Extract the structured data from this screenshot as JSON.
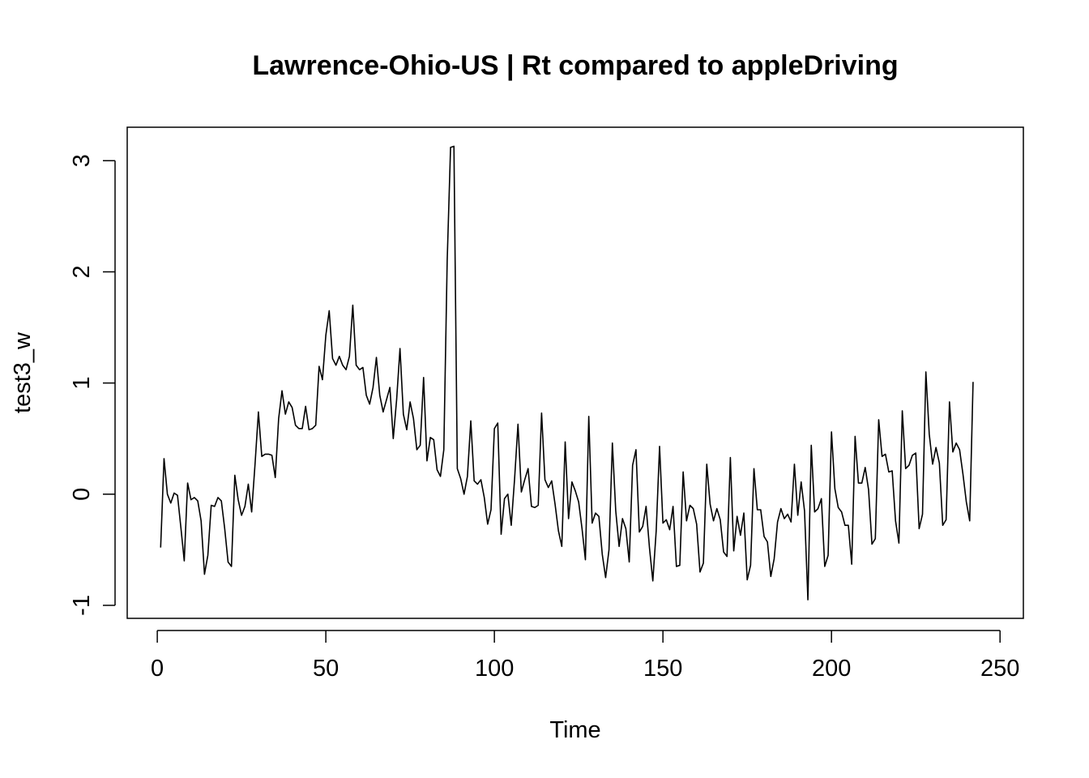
{
  "chart_data": {
    "type": "line",
    "title": "Lawrence-Ohio-US | Rt compared to appleDriving",
    "xlabel": "Time",
    "ylabel": "test3_w",
    "xlim": [
      -8.92,
      256.92
    ],
    "ylim": [
      -1.117,
      3.301
    ],
    "x_ticks": [
      0,
      50,
      100,
      150,
      200,
      250
    ],
    "x_tick_labels": [
      "0",
      "50",
      "100",
      "150",
      "200",
      "250"
    ],
    "y_ticks": [
      -1,
      0,
      1,
      2,
      3
    ],
    "y_tick_labels": [
      "-1",
      "0",
      "1",
      "2",
      "3"
    ],
    "grid": false,
    "line_color": "#000000",
    "series": [
      {
        "x_start": 1,
        "x_step": 1,
        "values": [
          -0.48,
          0.32,
          0.0,
          -0.08,
          0.01,
          -0.01,
          -0.3,
          -0.6,
          0.1,
          -0.05,
          -0.03,
          -0.06,
          -0.24,
          -0.72,
          -0.55,
          -0.1,
          -0.11,
          -0.03,
          -0.06,
          -0.31,
          -0.61,
          -0.65,
          0.17,
          -0.05,
          -0.19,
          -0.11,
          0.09,
          -0.16,
          0.27,
          0.74,
          0.34,
          0.36,
          0.36,
          0.35,
          0.15,
          0.68,
          0.93,
          0.72,
          0.83,
          0.78,
          0.62,
          0.59,
          0.59,
          0.79,
          0.58,
          0.59,
          0.62,
          1.15,
          1.03,
          1.43,
          1.65,
          1.22,
          1.16,
          1.24,
          1.16,
          1.12,
          1.24,
          1.7,
          1.16,
          1.12,
          1.14,
          0.89,
          0.81,
          0.96,
          1.23,
          0.89,
          0.74,
          0.85,
          0.96,
          0.5,
          0.85,
          1.31,
          0.72,
          0.58,
          0.83,
          0.68,
          0.4,
          0.44,
          1.05,
          0.3,
          0.51,
          0.49,
          0.22,
          0.16,
          0.4,
          2.1,
          3.12,
          3.13,
          0.23,
          0.14,
          0.0,
          0.16,
          0.66,
          0.12,
          0.09,
          0.13,
          -0.03,
          -0.27,
          -0.14,
          0.59,
          0.64,
          -0.36,
          -0.04,
          0.0,
          -0.28,
          0.14,
          0.63,
          0.02,
          0.13,
          0.23,
          -0.11,
          -0.12,
          -0.1,
          0.73,
          0.13,
          0.06,
          0.12,
          -0.09,
          -0.33,
          -0.47,
          0.47,
          -0.22,
          0.11,
          0.03,
          -0.07,
          -0.31,
          -0.59,
          0.7,
          -0.26,
          -0.17,
          -0.2,
          -0.54,
          -0.75,
          -0.5,
          0.46,
          -0.15,
          -0.47,
          -0.22,
          -0.31,
          -0.61,
          0.26,
          0.4,
          -0.34,
          -0.29,
          -0.11,
          -0.48,
          -0.78,
          -0.33,
          0.43,
          -0.26,
          -0.23,
          -0.32,
          -0.11,
          -0.65,
          -0.64,
          0.2,
          -0.24,
          -0.1,
          -0.13,
          -0.27,
          -0.7,
          -0.62,
          0.27,
          -0.09,
          -0.24,
          -0.13,
          -0.23,
          -0.52,
          -0.56,
          0.33,
          -0.51,
          -0.2,
          -0.37,
          -0.17,
          -0.77,
          -0.64,
          0.23,
          -0.14,
          -0.14,
          -0.38,
          -0.43,
          -0.74,
          -0.58,
          -0.25,
          -0.13,
          -0.22,
          -0.18,
          -0.25,
          0.27,
          -0.19,
          0.11,
          -0.15,
          -0.95,
          0.44,
          -0.16,
          -0.13,
          -0.04,
          -0.65,
          -0.55,
          0.56,
          0.05,
          -0.12,
          -0.16,
          -0.28,
          -0.28,
          -0.63,
          0.52,
          0.1,
          0.1,
          0.24,
          0.04,
          -0.45,
          -0.4,
          0.67,
          0.34,
          0.36,
          0.2,
          0.21,
          -0.24,
          -0.44,
          0.75,
          0.23,
          0.26,
          0.35,
          0.37,
          -0.31,
          -0.18,
          1.1,
          0.54,
          0.27,
          0.42,
          0.28,
          -0.28,
          -0.23,
          0.83,
          0.38,
          0.46,
          0.4,
          0.18,
          -0.07,
          -0.24,
          1.01
        ]
      }
    ]
  }
}
